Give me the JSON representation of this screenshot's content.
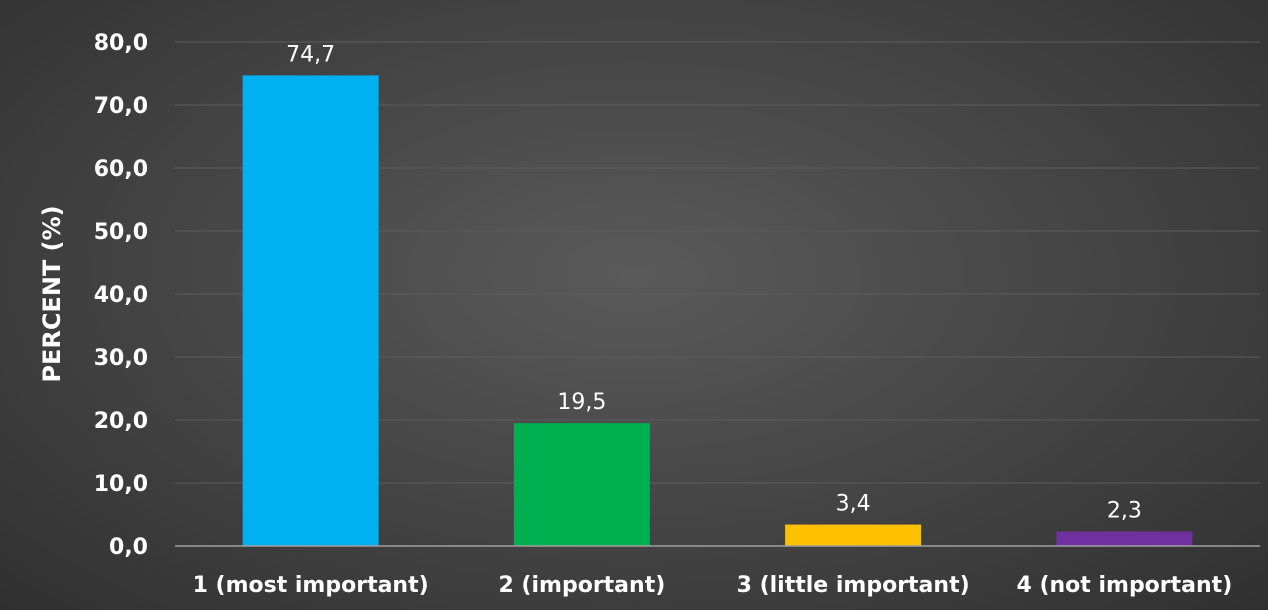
{
  "chart_data": {
    "type": "bar",
    "title": "",
    "xlabel": "",
    "ylabel": "PERCENT (%)",
    "ylim": [
      0,
      80
    ],
    "yticks": [
      "0,0",
      "10,0",
      "20,0",
      "30,0",
      "40,0",
      "50,0",
      "60,0",
      "70,0",
      "80,0"
    ],
    "categories": [
      "1 (most important)",
      "2 (important)",
      "3 (little important)",
      "4 (not important)"
    ],
    "values": [
      74.7,
      19.5,
      3.4,
      2.3
    ],
    "value_labels": [
      "74,7",
      "19,5",
      "3,4",
      "2,3"
    ],
    "colors": [
      "#00b0f0",
      "#00b050",
      "#ffc000",
      "#7030a0"
    ],
    "grid": true,
    "legend": "none"
  }
}
